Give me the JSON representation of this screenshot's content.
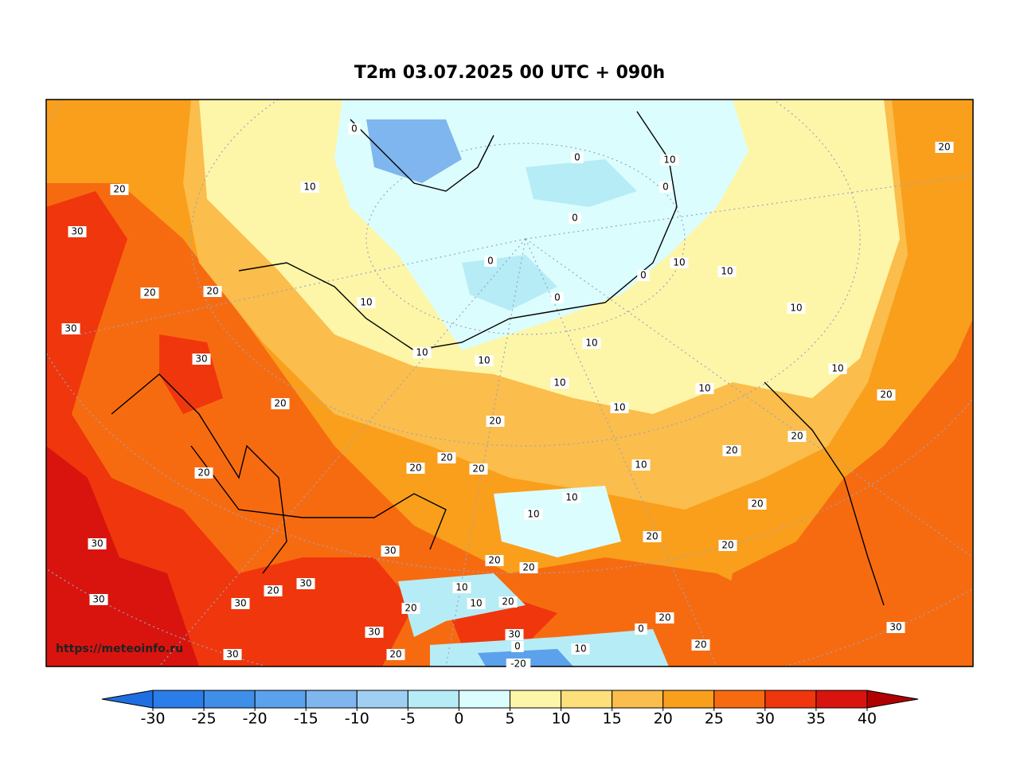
{
  "title": "T2m 03.07.2025 00 UTC + 090h",
  "watermark": "https://meteoinfo.ru",
  "colorbar": {
    "ticks": [
      -30,
      -25,
      -20,
      -15,
      -10,
      -5,
      0,
      5,
      10,
      15,
      20,
      25,
      30,
      35,
      40
    ],
    "colors": [
      "#2b7de9",
      "#3f8fe9",
      "#5ca1eb",
      "#7fb6ef",
      "#9fd0f3",
      "#b6ecf6",
      "#dcfdfd",
      "#fdf6a8",
      "#fde07a",
      "#fbbd4b",
      "#f99f1c",
      "#f76b10",
      "#f0360c",
      "#d9140e"
    ],
    "under_color": "#1f6fe3",
    "over_color": "#b00000"
  },
  "contour_labels": [
    "0",
    "20",
    "10",
    "0",
    "10",
    "0",
    "0",
    "20",
    "30",
    "0",
    "10",
    "10",
    "0",
    "20",
    "20",
    "10",
    "0",
    "10",
    "30",
    "10",
    "10",
    "10",
    "30",
    "10",
    "10",
    "10",
    "20",
    "20",
    "10",
    "20",
    "20",
    "20",
    "20",
    "20",
    "20",
    "10",
    "20",
    "10",
    "10",
    "20",
    "20",
    "30",
    "30",
    "20",
    "20",
    "20",
    "30",
    "20",
    "10",
    "30",
    "30",
    "10",
    "20",
    "20",
    "20",
    "30",
    "0",
    "30",
    "30",
    "0",
    "20",
    "10",
    "30",
    "20",
    "-20"
  ]
}
